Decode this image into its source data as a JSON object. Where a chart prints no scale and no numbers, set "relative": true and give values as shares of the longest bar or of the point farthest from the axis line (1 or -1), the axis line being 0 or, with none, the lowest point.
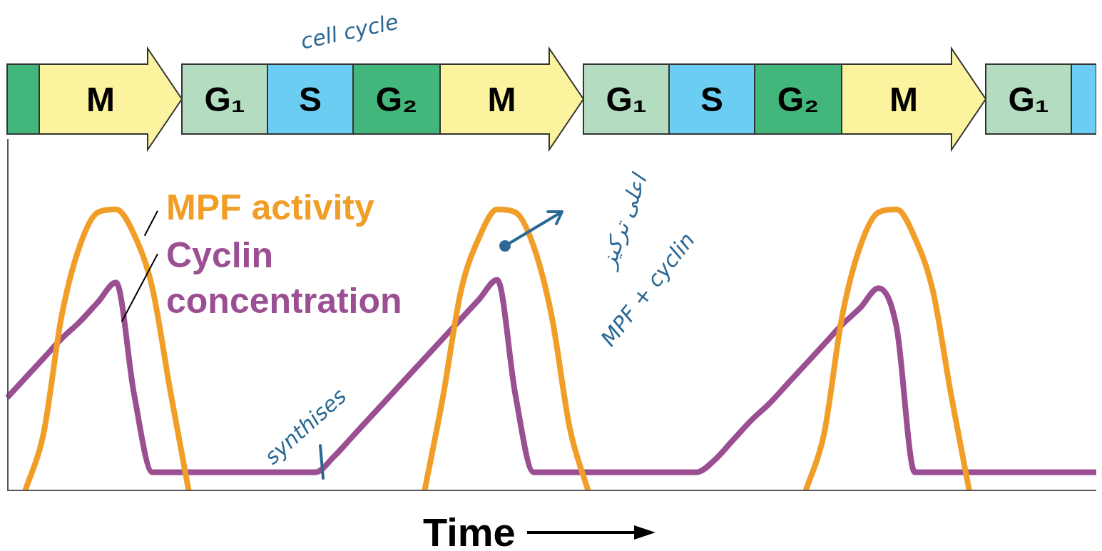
{
  "chart_data": {
    "type": "line",
    "relative": true,
    "xlabel": "Time",
    "marker": "none",
    "line_style": "solid",
    "categories": [
      null,
      null,
      null,
      null,
      null,
      null,
      null,
      null,
      null,
      null,
      null,
      null,
      null,
      null,
      null,
      null,
      null,
      null,
      null,
      null,
      null,
      null,
      null,
      null,
      null,
      null,
      null,
      null,
      null,
      null,
      null,
      null,
      null,
      null,
      null,
      null,
      null,
      null,
      null,
      null,
      null,
      null,
      null,
      null,
      null,
      null,
      null,
      null,
      null,
      null,
      null,
      null,
      null,
      null,
      null,
      null,
      null,
      null,
      null,
      null,
      null
    ],
    "series": [
      {
        "name": "MPF activity",
        "color": "#f19e28",
        "values": [
          null,
          0,
          0.2,
          0.62,
          0.87,
          0.99,
          1.0,
          0.91,
          0.72,
          0.35,
          0,
          null,
          null,
          null,
          null,
          null,
          null,
          null,
          null,
          null,
          null,
          null,
          null,
          0,
          0.33,
          0.71,
          0.9,
          1.0,
          0.99,
          0.87,
          0.62,
          0.22,
          0,
          null,
          null,
          null,
          null,
          null,
          null,
          null,
          null,
          null,
          null,
          null,
          0,
          0.2,
          0.62,
          0.87,
          0.99,
          1.0,
          0.9,
          0.71,
          0.34,
          0,
          null,
          null,
          null,
          null,
          null,
          null,
          null
        ]
      },
      {
        "name": "Cyclin concentration",
        "color": "#9b4f93",
        "values": [
          0.33,
          0.4,
          0.47,
          0.54,
          0.6,
          0.67,
          0.74,
          0.34,
          0.065,
          0.065,
          0.065,
          0.065,
          0.065,
          0.065,
          0.065,
          0.065,
          0.065,
          0.065,
          0.12,
          0.19,
          0.26,
          0.33,
          0.4,
          0.47,
          0.54,
          0.61,
          0.68,
          0.75,
          0.34,
          0.065,
          0.065,
          0.065,
          0.065,
          0.065,
          0.065,
          0.065,
          0.065,
          0.065,
          0.065,
          0.11,
          0.18,
          0.25,
          0.31,
          0.38,
          0.45,
          0.52,
          0.59,
          0.65,
          0.72,
          0.58,
          0.065,
          0.065,
          0.065,
          0.065,
          0.065,
          0.065,
          0.065,
          0.065,
          0.065,
          0.065,
          0.065
        ]
      }
    ],
    "annotations": [
      "cell cycle",
      "M",
      "G₁",
      "S",
      "G₂",
      "M",
      "G₁",
      "S",
      "G₂",
      "M",
      "G₁",
      "synthises",
      "اعلى تركيز",
      "MPF + cyclin"
    ]
  }
}
